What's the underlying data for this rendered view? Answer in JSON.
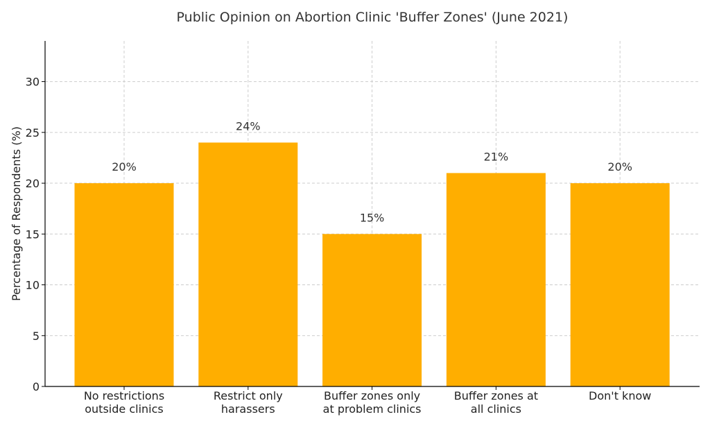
{
  "chart_data": {
    "type": "bar",
    "title": "Public Opinion on Abortion Clinic 'Buffer Zones' (June 2021)",
    "xlabel": "",
    "ylabel": "Percentage of Respondents (%)",
    "categories": [
      [
        "No restrictions",
        "outside clinics"
      ],
      [
        "Restrict only",
        "harassers"
      ],
      [
        "Buffer zones only",
        "at problem clinics"
      ],
      [
        "Buffer zones at",
        "all clinics"
      ],
      [
        "Don't know"
      ]
    ],
    "values": [
      20,
      24,
      15,
      21,
      20
    ],
    "data_labels": [
      "20%",
      "24%",
      "15%",
      "21%",
      "20%"
    ],
    "ylim": [
      0,
      34
    ],
    "yticks": [
      0,
      5,
      10,
      15,
      20,
      25,
      30
    ],
    "grid": true,
    "bar_color": "#FFAE00"
  }
}
